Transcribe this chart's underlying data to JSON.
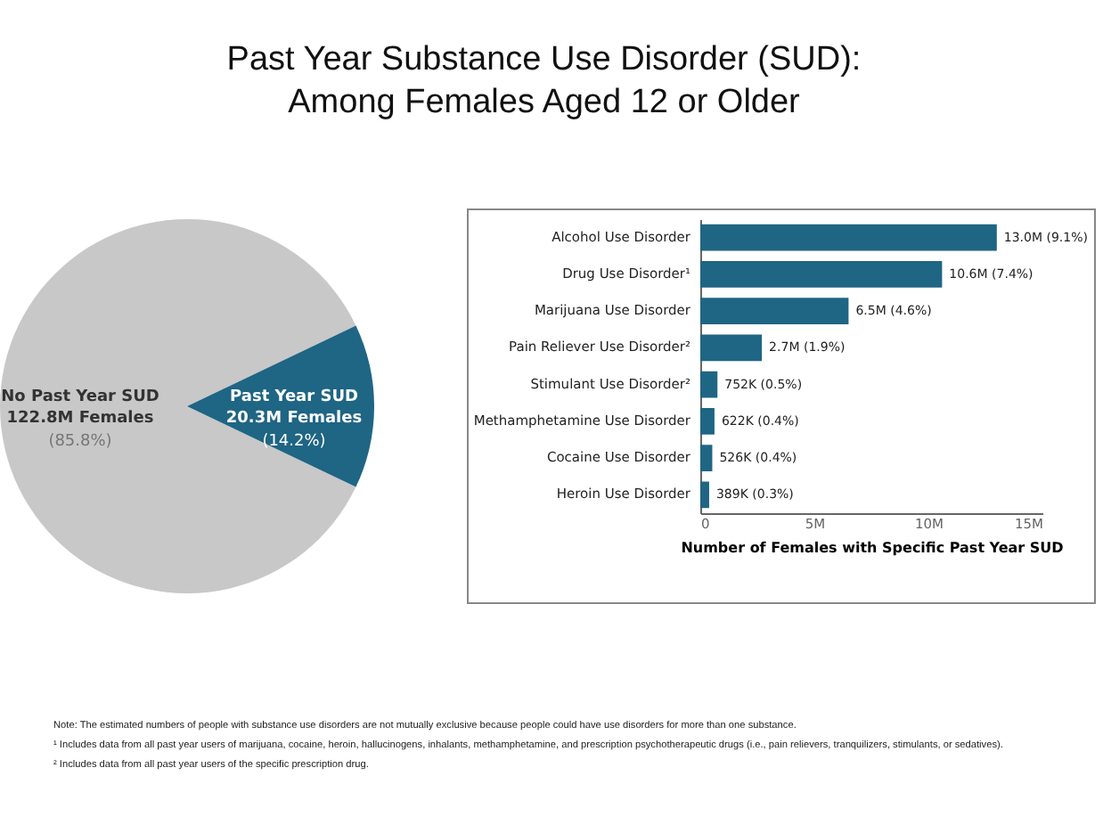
{
  "chart_data": [
    {
      "type": "pie",
      "title": "Past Year Substance Use Disorder (SUD): Among Females Aged 12 or Older",
      "categories": [
        "No Past Year SUD",
        "Past Year SUD"
      ],
      "values": [
        85.8,
        14.2
      ],
      "colors": [
        "#c8c8c8",
        "#1f6584"
      ],
      "value_labels": [
        "122.8M Females (85.8%)",
        "20.3M Females (14.2%)"
      ]
    },
    {
      "type": "bar",
      "orientation": "horizontal",
      "xlabel": "Number of Females with Specific Past Year SUD",
      "categories": [
        "Alcohol Use Disorder",
        "Drug Use Disorder¹",
        "Marijuana Use Disorder",
        "Pain Reliever Use Disorder²",
        "Stimulant Use Disorder²",
        "Methamphetamine Use Disorder",
        "Cocaine Use Disorder",
        "Heroin Use Disorder"
      ],
      "values": [
        13000000,
        10600000,
        6500000,
        2700000,
        752000,
        622000,
        526000,
        389000
      ],
      "color": "#1f6584",
      "value_labels": [
        "13.0M (9.1%)",
        "10.6M (7.4%)",
        "6.5M (4.6%)",
        "2.7M (1.9%)",
        "752K (0.5%)",
        "622K (0.4%)",
        "526K (0.4%)",
        "389K (0.3%)"
      ],
      "xlim": [
        0,
        15000000
      ],
      "xticks": [
        0,
        {
          "value": 5000000,
          "label": "5M"
        },
        {
          "value": 10000000,
          "label": "10M"
        },
        {
          "value": 15000000,
          "label": "15M"
        }
      ],
      "annotations": [
        "Note: The estimated numbers of people with substance use disorders are not mutually exclusive because people could have use disorders for more than one substance.",
        "¹ Includes data from all past year users of marijuana, cocaine, heroin, hallucinogens, inhalants, methamphetamine, and prescription psychotherapeutic drugs (i.e., pain relievers, tranquilizers, stimulants, or sedatives).",
        "² Includes data from all past year users of the specific prescription drug."
      ]
    }
  ]
}
